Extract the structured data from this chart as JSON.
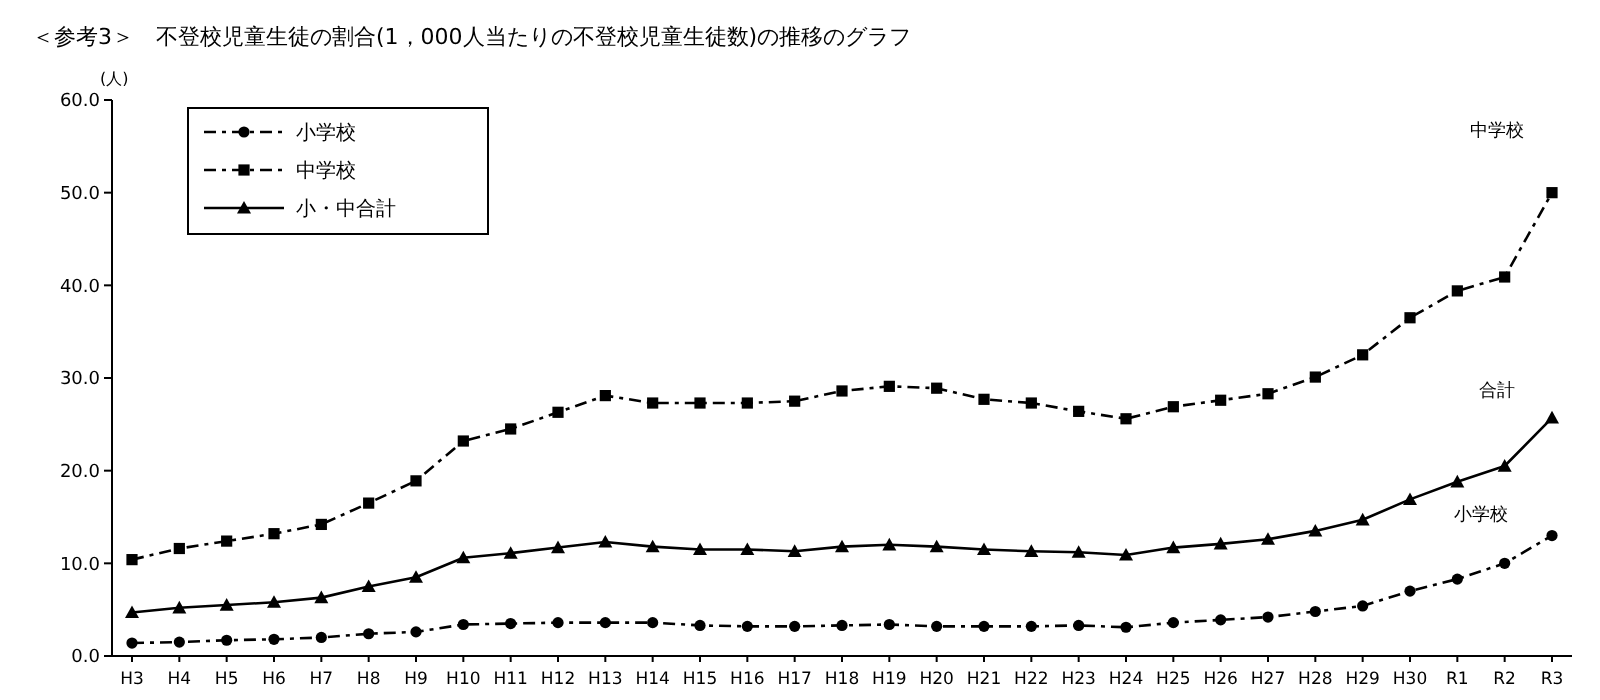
{
  "chart_data": {
    "type": "line",
    "title": "＜参考3＞　不登校児童生徒の割合(1，000人当たりの不登校児童生徒数)の推移のグラフ",
    "ylabel": "(人)",
    "categories": [
      "H3",
      "H4",
      "H5",
      "H6",
      "H7",
      "H8",
      "H9",
      "H10",
      "H11",
      "H12",
      "H13",
      "H14",
      "H15",
      "H16",
      "H17",
      "H18",
      "H19",
      "H20",
      "H21",
      "H22",
      "H23",
      "H24",
      "H25",
      "H26",
      "H27",
      "H28",
      "H29",
      "H30",
      "R1",
      "R2",
      "R3"
    ],
    "series": [
      {
        "name": "小学校",
        "color": "#000000",
        "marker": "circle",
        "line_style": "dashed",
        "values": [
          1.4,
          1.5,
          1.7,
          1.8,
          2.0,
          2.4,
          2.6,
          3.4,
          3.5,
          3.6,
          3.6,
          3.6,
          3.3,
          3.2,
          3.2,
          3.3,
          3.4,
          3.2,
          3.2,
          3.2,
          3.3,
          3.1,
          3.6,
          3.9,
          4.2,
          4.8,
          5.4,
          7.0,
          8.3,
          10.0,
          13.0
        ]
      },
      {
        "name": "中学校",
        "color": "#000000",
        "marker": "square",
        "line_style": "dashed",
        "values": [
          10.4,
          11.6,
          12.4,
          13.2,
          14.2,
          16.5,
          18.9,
          23.2,
          24.5,
          26.3,
          28.1,
          27.3,
          27.3,
          27.3,
          27.5,
          28.6,
          29.1,
          28.9,
          27.7,
          27.3,
          26.4,
          25.6,
          26.9,
          27.6,
          28.3,
          30.1,
          32.5,
          36.5,
          39.4,
          40.9,
          50.0
        ]
      },
      {
        "name": "小・中合計",
        "color": "#000000",
        "marker": "triangle",
        "line_style": "solid",
        "values": [
          4.7,
          5.2,
          5.5,
          5.8,
          6.3,
          7.5,
          8.5,
          10.6,
          11.1,
          11.7,
          12.3,
          11.8,
          11.5,
          11.5,
          11.3,
          11.8,
          12.0,
          11.8,
          11.5,
          11.3,
          11.2,
          10.9,
          11.7,
          12.1,
          12.6,
          13.5,
          14.7,
          16.9,
          18.8,
          20.5,
          25.7
        ]
      }
    ],
    "ylim": [
      0,
      60
    ],
    "yticks": [
      {
        "value": 0,
        "label": "0.0"
      },
      {
        "value": 10,
        "label": "10.0"
      },
      {
        "value": 20,
        "label": "20.0"
      },
      {
        "value": 30,
        "label": "30.0"
      },
      {
        "value": 40,
        "label": "40.0"
      },
      {
        "value": 50,
        "label": "50.0"
      },
      {
        "value": 60,
        "label": "60.0"
      }
    ],
    "annotations": [
      "中学校",
      "合計",
      "小学校"
    ],
    "grid": false,
    "legend": "top left"
  }
}
